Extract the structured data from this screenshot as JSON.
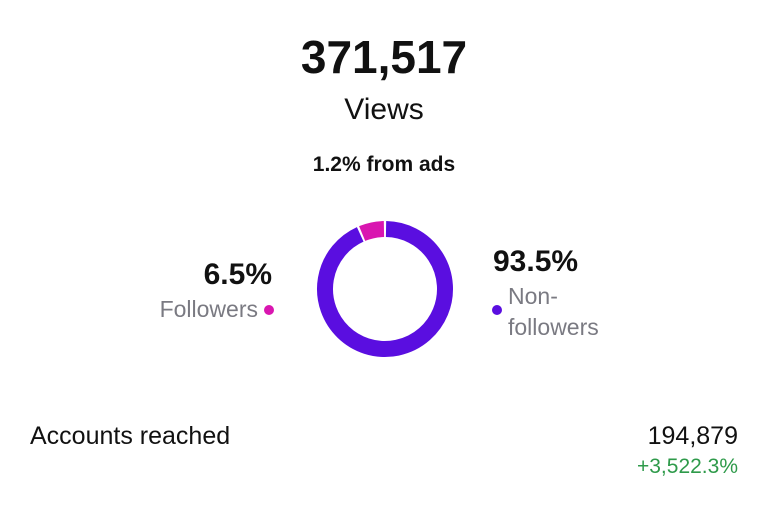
{
  "views": {
    "count": "371,517",
    "label": "Views"
  },
  "ads_note": "1.2% from ads",
  "chart_data": {
    "type": "donut",
    "categories": [
      "Followers",
      "Non-followers"
    ],
    "values": [
      6.5,
      93.5
    ],
    "value_labels": [
      "6.5%",
      "93.5%"
    ],
    "colors": [
      "#d916b0",
      "#5a0ee0"
    ]
  },
  "accounts_reached": {
    "label": "Accounts reached",
    "value": "194,879",
    "change": "+3,522.3%"
  }
}
